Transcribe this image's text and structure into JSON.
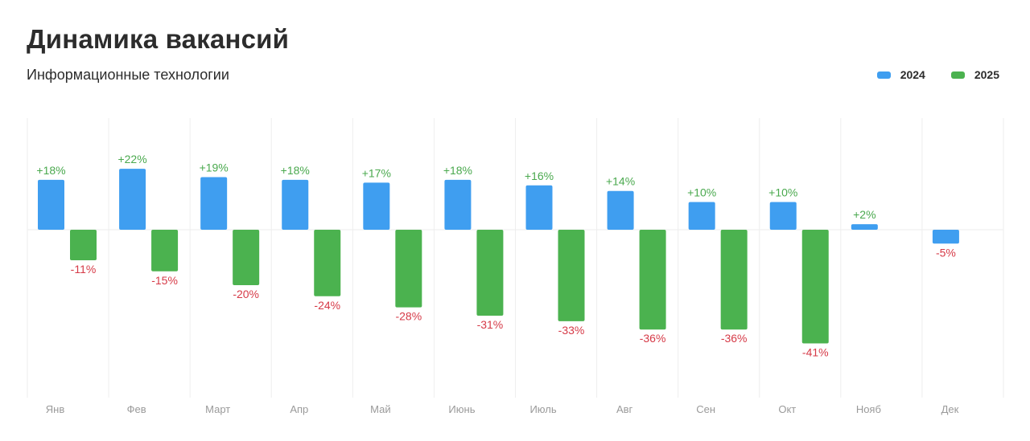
{
  "chart_data": {
    "type": "bar",
    "title": "Динамика вакансий",
    "subtitle": "Информационные технологии",
    "categories": [
      "Янв",
      "Фев",
      "Март",
      "Апр",
      "Май",
      "Июнь",
      "Июль",
      "Авг",
      "Сен",
      "Окт",
      "Нояб",
      "Дек"
    ],
    "series": [
      {
        "name": "2024",
        "color": "#3f9ef0",
        "values": [
          18,
          22,
          19,
          18,
          17,
          18,
          16,
          14,
          10,
          10,
          2,
          -5
        ],
        "labels": [
          "+18%",
          "+22%",
          "+19%",
          "+18%",
          "+17%",
          "+18%",
          "+16%",
          "+14%",
          "+10%",
          "+10%",
          "+2%",
          "-5%"
        ]
      },
      {
        "name": "2025",
        "color": "#4bb24f",
        "values": [
          -11,
          -15,
          -20,
          -24,
          -28,
          -31,
          -33,
          -36,
          -36,
          -41,
          null,
          null
        ],
        "labels": [
          "-11%",
          "-15%",
          "-20%",
          "-24%",
          "-28%",
          "-31%",
          "-33%",
          "-36%",
          "-36%",
          "-41%",
          null,
          null
        ]
      }
    ],
    "positive_label_color": "#4aa94e",
    "negative_label_color": "#d63a47",
    "ylabel": "",
    "xlabel": "",
    "ylim": [
      -60,
      40
    ],
    "legend_position": "top-right",
    "grid": "vertical"
  }
}
